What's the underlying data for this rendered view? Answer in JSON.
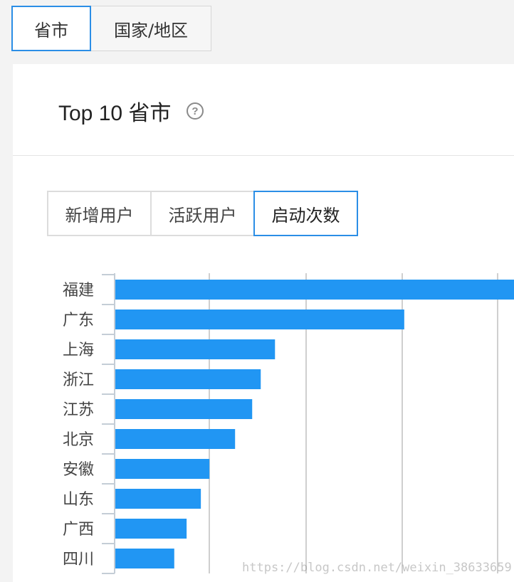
{
  "top_tabs": [
    {
      "label": "省市",
      "active": true
    },
    {
      "label": "国家/地区",
      "active": false
    }
  ],
  "card": {
    "title": "Top 10 省市",
    "help_icon": "question-circle-icon"
  },
  "metric_tabs": [
    {
      "label": "新增用户",
      "active": false
    },
    {
      "label": "活跃用户",
      "active": false
    },
    {
      "label": "启动次数",
      "active": true
    }
  ],
  "chart_data": {
    "type": "bar",
    "orientation": "horizontal",
    "categories": [
      "福建",
      "广东",
      "上海",
      "浙江",
      "江苏",
      "北京",
      "安徽",
      "山东",
      "广西",
      "四川"
    ],
    "values": [
      4.2,
      3.04,
      1.68,
      1.53,
      1.44,
      1.26,
      0.99,
      0.9,
      0.75,
      0.62
    ],
    "bar_color": "#2196f3",
    "grid": true,
    "title": "",
    "xlabel": "",
    "ylabel": ""
  },
  "watermark": "https://blog.csdn.net/weixin_38633659"
}
